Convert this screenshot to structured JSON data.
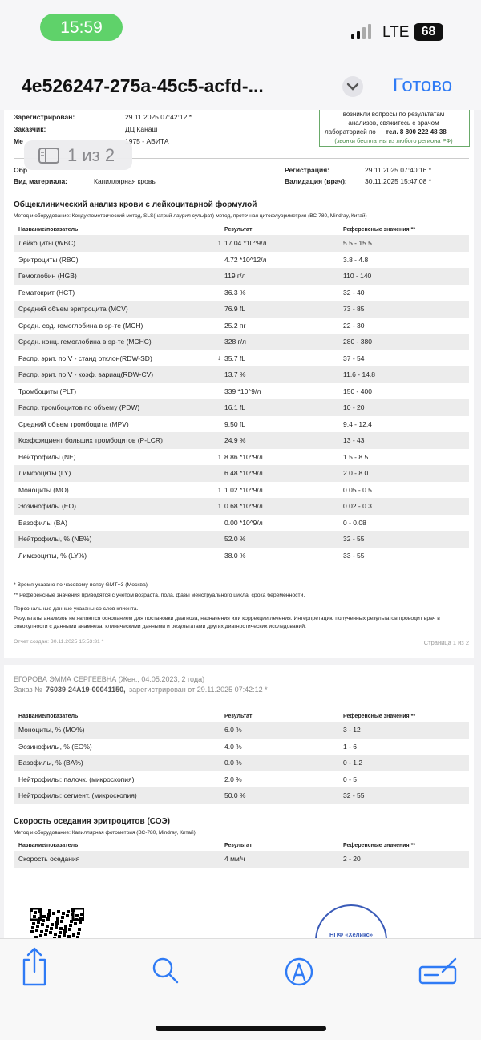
{
  "status_bar": {
    "time": "15:59",
    "network": "LTE",
    "battery": "68"
  },
  "nav_bar": {
    "title": "4e526247-275a-45c5-acfd-...",
    "done": "Готово"
  },
  "page_indicator": "1 из 2",
  "page1": {
    "info": [
      {
        "label": "Зарегистрирован:",
        "value": "29.11.2025 07:42:12 *"
      },
      {
        "label": "Заказчик:",
        "value": "ДЦ Канаш"
      },
      {
        "label": "Ме",
        "value": "1975 - АВИТА"
      }
    ],
    "notice": {
      "line1": "возникли вопросы по результатам",
      "line2": "анализов, свяжитесь с врачом",
      "line3": "лабораторией по",
      "phone": "тел. 8 800 222 48 38",
      "line4": "(звонки бесплатны из любого региона РФ)"
    },
    "sample_label": "Обр",
    "material": {
      "label": "Вид материала:",
      "value": "Капиллярная кровь"
    },
    "registration": {
      "label": "Регистрация:",
      "value": "29.11.2025 07:40:16 *"
    },
    "validation": {
      "label": "Валидация (врач):",
      "value": "30.11.2025 15:47:08 *"
    },
    "section": {
      "title": "Общеклинический анализ крови с лейкоцитарной формулой",
      "method": "Метод и оборудование: Кондуктометрический метод, SLS(натрий лаурил сульфат)-метод, проточная цитофлуориметрия (ВС-780, Mindray, Китай)",
      "header": [
        "Название/показатель",
        "Результат",
        "Референсные значения **"
      ],
      "rows": [
        {
          "name": "Лейкоциты (WBC)",
          "flag": "↑",
          "result": "17.04 *10^9/л",
          "ref": "5.5 - 15.5"
        },
        {
          "name": "Эритроциты (RBC)",
          "result": "4.72 *10^12/л",
          "ref": "3.8 - 4.8"
        },
        {
          "name": "Гемоглобин (HGB)",
          "result": "119 г/л",
          "ref": "110 - 140"
        },
        {
          "name": "Гематокрит (HCT)",
          "result": "36.3 %",
          "ref": "32 - 40"
        },
        {
          "name": "Средний объем эритроцита (MCV)",
          "result": "76.9 fL",
          "ref": "73 - 85"
        },
        {
          "name": "Средн. сод. гемоглобина в эр-те (MCH)",
          "result": "25.2 пг",
          "ref": "22 - 30"
        },
        {
          "name": "Средн. конц. гемоглобина в эр-те (MCHC)",
          "result": "328 г/л",
          "ref": "280 - 380"
        },
        {
          "name": "Распр. эрит. по V - станд отклон(RDW-SD)",
          "flag": "↓",
          "result": "35.7 fL",
          "ref": "37 - 54"
        },
        {
          "name": "Распр. эрит. по V - коэф. вариац(RDW-CV)",
          "result": "13.7 %",
          "ref": "11.6 - 14.8"
        },
        {
          "name": "Тромбоциты (PLT)",
          "result": "339 *10^9/л",
          "ref": "150 - 400"
        },
        {
          "name": "Распр. тромбоцитов по объему (PDW)",
          "result": "16.1 fL",
          "ref": "10 - 20"
        },
        {
          "name": "Средний объем тромбоцита (MPV)",
          "result": "9.50 fL",
          "ref": "9.4 - 12.4"
        },
        {
          "name": "Коэффициент больших тромбоцитов (P-LCR)",
          "result": "24.9 %",
          "ref": "13 - 43"
        },
        {
          "name": "Нейтрофилы (NE)",
          "flag": "↑",
          "result": "8.86 *10^9/л",
          "ref": "1.5 - 8.5"
        },
        {
          "name": "Лимфоциты (LY)",
          "result": "6.48 *10^9/л",
          "ref": "2.0 - 8.0"
        },
        {
          "name": "Моноциты (MO)",
          "flag": "↑",
          "result": "1.02 *10^9/л",
          "ref": "0.05 - 0.5"
        },
        {
          "name": "Эозинофилы (EO)",
          "flag": "↑",
          "result": "0.68 *10^9/л",
          "ref": "0.02 - 0.3"
        },
        {
          "name": "Базофилы (BA)",
          "result": "0.00 *10^9/л",
          "ref": "0 - 0.08"
        },
        {
          "name": "Нейтрофилы, % (NE%)",
          "result": "52.0 %",
          "ref": "32 - 55"
        },
        {
          "name": "Лимфоциты, % (LY%)",
          "result": "38.0 %",
          "ref": "33 - 55"
        }
      ]
    },
    "notes": [
      "* Время указано по часовому поясу GMT+3 (Москва)",
      "** Референсные значения приводятся с учетом возраста, пола, фазы менструального цикла, срока беременности.",
      "Персональные данные указаны со слов клиента.",
      "Результаты анализов не являются основанием для постановки диагноза, назначения или коррекции лечения. Интерпретацию полученных результатов проводит врач в совокупности с данными анамнеза, клиническими данными и результатами других диагностических исследований."
    ],
    "created": "Отчет создан: 30.11.2025 15:53:31 *",
    "page_number": "Страница 1 из 2"
  },
  "page2": {
    "patient": "ЕГОРОВА ЭММА СЕРГЕЕВНА (Жен., 04.05.2023, 2 года)",
    "order": {
      "label": "Заказ №",
      "number": "76039-24A19-00041150,",
      "registered": "зарегистрирован от 29.11.2025 07:42:12 *"
    },
    "table": {
      "header": [
        "Название/показатель",
        "Результат",
        "Референсные значения **"
      ],
      "rows": [
        {
          "name": "Моноциты, % (MO%)",
          "result": "6.0 %",
          "ref": "3 - 12"
        },
        {
          "name": "Эозинофилы, % (EO%)",
          "result": "4.0 %",
          "ref": "1 - 6"
        },
        {
          "name": "Базофилы, % (BA%)",
          "result": "0.0 %",
          "ref": "0 - 1.2"
        },
        {
          "name": "Нейтрофилы: палочк. (микроскопия)",
          "result": "2.0 %",
          "ref": "0 - 5"
        },
        {
          "name": "Нейтрофилы: сегмент. (микроскопия)",
          "result": "50.0 %",
          "ref": "32 - 55"
        }
      ]
    },
    "section": {
      "title": "Скорость оседания эритроцитов (СОЭ)",
      "method": "Метод и оборудование: Капиллярная фотометрия (ВС-780, Mindray, Китай)",
      "header": [
        "Название/показатель",
        "Результат",
        "Референсные значения **"
      ],
      "rows": [
        {
          "name": "Скорость оседания",
          "result": "4 мм/ч",
          "ref": "2 - 20"
        }
      ]
    },
    "stamp": "НПФ «Хеликс»"
  }
}
